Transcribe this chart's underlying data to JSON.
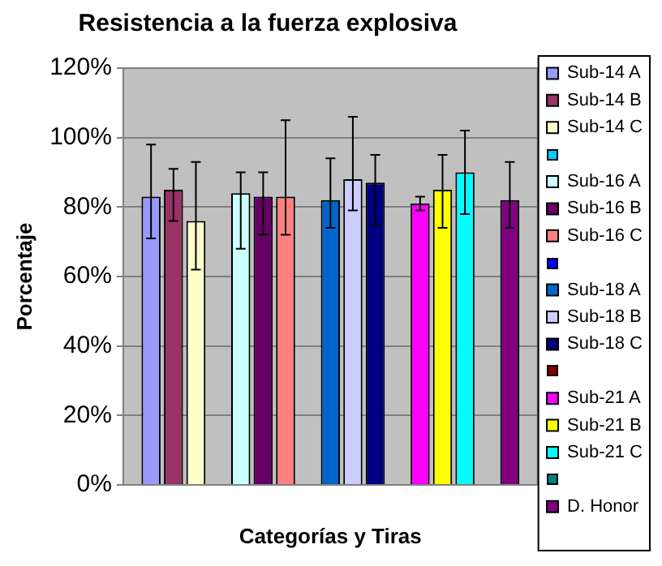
{
  "chart_data": {
    "type": "bar",
    "title": "Resistencia a la fuerza explosiva",
    "xlabel": "Categorías y Tiras",
    "ylabel": "Porcentaje",
    "categories": [
      null
    ],
    "series": [
      {
        "name": "Sub-14 A",
        "color": "#9999ff",
        "values": [
          83
        ],
        "errors": [
          [
            71,
            98
          ]
        ]
      },
      {
        "name": "Sub-14 B",
        "color": "#993366",
        "values": [
          85
        ],
        "errors": [
          [
            76,
            91
          ]
        ]
      },
      {
        "name": "Sub-14 C",
        "color": "#ffffcc",
        "values": [
          76
        ],
        "errors": [
          [
            62,
            93
          ]
        ]
      },
      {
        "color": "#00ccff",
        "values": [
          null
        ]
      },
      {
        "name": "Sub-16 A",
        "color": "#ccffff",
        "values": [
          84
        ],
        "errors": [
          [
            68,
            90
          ]
        ]
      },
      {
        "name": "Sub-16 B",
        "color": "#660066",
        "values": [
          83
        ],
        "errors": [
          [
            72,
            90
          ]
        ]
      },
      {
        "name": "Sub-16 C",
        "color": "#ff8080",
        "values": [
          83
        ],
        "errors": [
          [
            72,
            105
          ]
        ]
      },
      {
        "color": "#0000ff",
        "values": [
          null
        ]
      },
      {
        "name": "Sub-18 A",
        "color": "#0066cc",
        "values": [
          82
        ],
        "errors": [
          [
            74,
            94
          ]
        ]
      },
      {
        "name": "Sub-18 B",
        "color": "#ccccff",
        "values": [
          88
        ],
        "errors": [
          [
            79,
            106
          ]
        ]
      },
      {
        "name": "Sub-18 C",
        "color": "#000080",
        "values": [
          87
        ],
        "errors": [
          [
            75,
            95
          ]
        ]
      },
      {
        "color": "#800000",
        "values": [
          null
        ]
      },
      {
        "name": "Sub-21 A",
        "color": "#ff00ff",
        "values": [
          81
        ],
        "errors": [
          [
            79,
            83
          ]
        ]
      },
      {
        "name": "Sub-21 B",
        "color": "#ffff00",
        "values": [
          85
        ],
        "errors": [
          [
            74,
            95
          ]
        ]
      },
      {
        "name": "Sub-21 C",
        "color": "#00ffff",
        "values": [
          90
        ],
        "errors": [
          [
            78,
            102
          ]
        ]
      },
      {
        "color": "#008080",
        "values": [
          null
        ]
      },
      {
        "name": "D. Honor",
        "color": "#800080",
        "values": [
          82
        ],
        "errors": [
          [
            74,
            93
          ]
        ]
      }
    ],
    "ylim": [
      0,
      120
    ],
    "yticks": [
      {
        "value": 0,
        "label": "0%"
      },
      {
        "value": 20,
        "label": "20%"
      },
      {
        "value": 40,
        "label": "40%"
      },
      {
        "value": 60,
        "label": "60%"
      },
      {
        "value": 80,
        "label": "80%"
      },
      {
        "value": 100,
        "label": "100%"
      },
      {
        "value": 120,
        "label": "120%"
      }
    ],
    "grid": "y",
    "legend": "right"
  }
}
